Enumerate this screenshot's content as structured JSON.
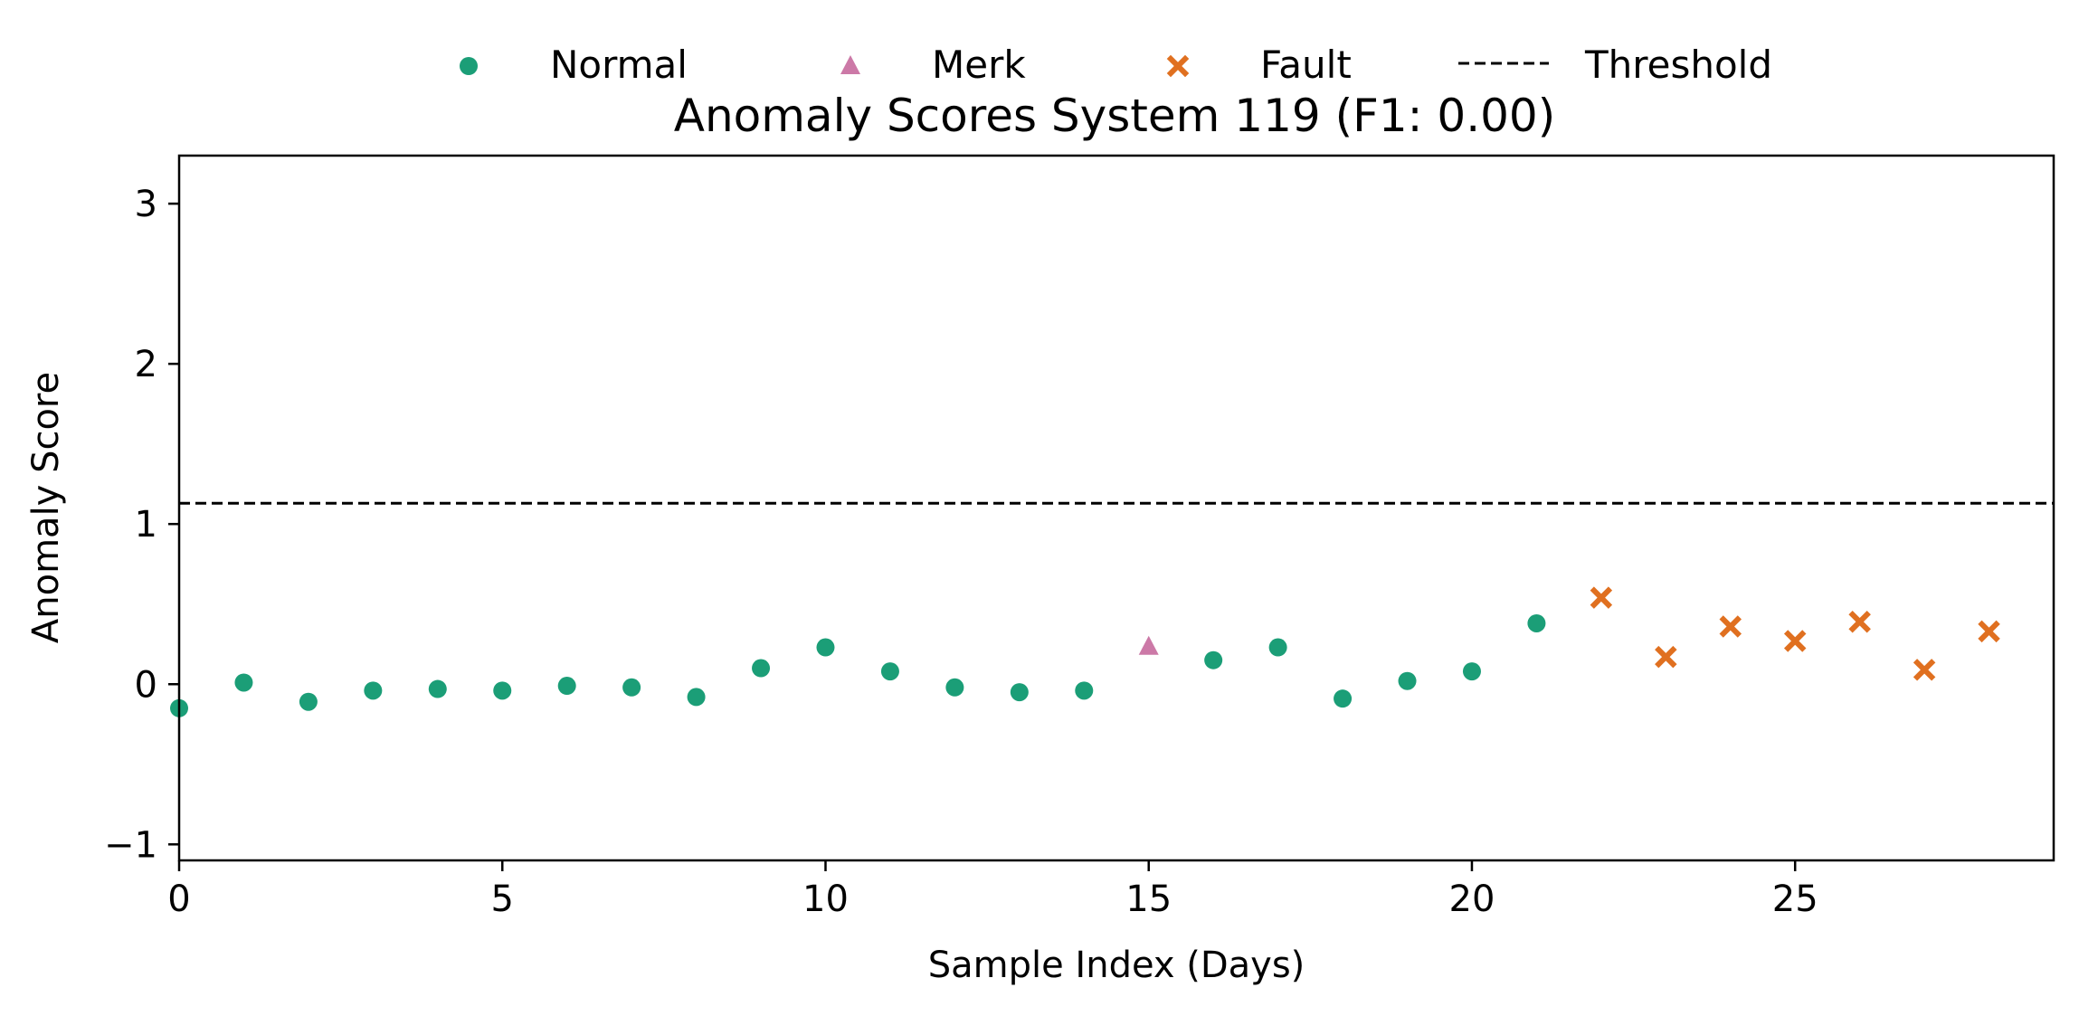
{
  "chart_data": {
    "type": "scatter",
    "title": "Anomaly Scores System 119 (F1: 0.00)",
    "xlabel": "Sample Index (Days)",
    "ylabel": "Anomaly Score",
    "xlim": [
      0,
      29
    ],
    "ylim": [
      -1.1,
      3.3
    ],
    "xticks": [
      0,
      5,
      10,
      15,
      20,
      25
    ],
    "yticks": [
      -1,
      0,
      1,
      2,
      3
    ],
    "ytick_labels": [
      "−1",
      "0",
      "1",
      "2",
      "3"
    ],
    "grid": false,
    "legend_position": "top-center",
    "threshold": {
      "name": "Threshold",
      "value": 1.13,
      "color": "#000000",
      "style": "dashed"
    },
    "series": [
      {
        "name": "Normal",
        "marker": "circle",
        "color": "#1b9e77",
        "points": [
          [
            0,
            -0.15
          ],
          [
            1,
            0.01
          ],
          [
            2,
            -0.11
          ],
          [
            3,
            -0.04
          ],
          [
            4,
            -0.03
          ],
          [
            5,
            -0.04
          ],
          [
            6,
            -0.01
          ],
          [
            7,
            -0.02
          ],
          [
            8,
            -0.08
          ],
          [
            9,
            0.1
          ],
          [
            10,
            0.23
          ],
          [
            11,
            0.08
          ],
          [
            12,
            -0.02
          ],
          [
            13,
            -0.05
          ],
          [
            14,
            -0.04
          ],
          [
            16,
            0.15
          ],
          [
            17,
            0.23
          ],
          [
            18,
            -0.09
          ],
          [
            19,
            0.02
          ],
          [
            20,
            0.08
          ],
          [
            21,
            0.38
          ]
        ]
      },
      {
        "name": "Merk",
        "marker": "triangle",
        "color": "#cc79a7",
        "points": [
          [
            15,
            0.24
          ]
        ]
      },
      {
        "name": "Fault",
        "marker": "x",
        "color": "#e07020",
        "points": [
          [
            22,
            0.54
          ],
          [
            23,
            0.17
          ],
          [
            24,
            0.36
          ],
          [
            25,
            0.27
          ],
          [
            26,
            0.39
          ],
          [
            27,
            0.09
          ],
          [
            28,
            0.33
          ]
        ]
      }
    ]
  }
}
